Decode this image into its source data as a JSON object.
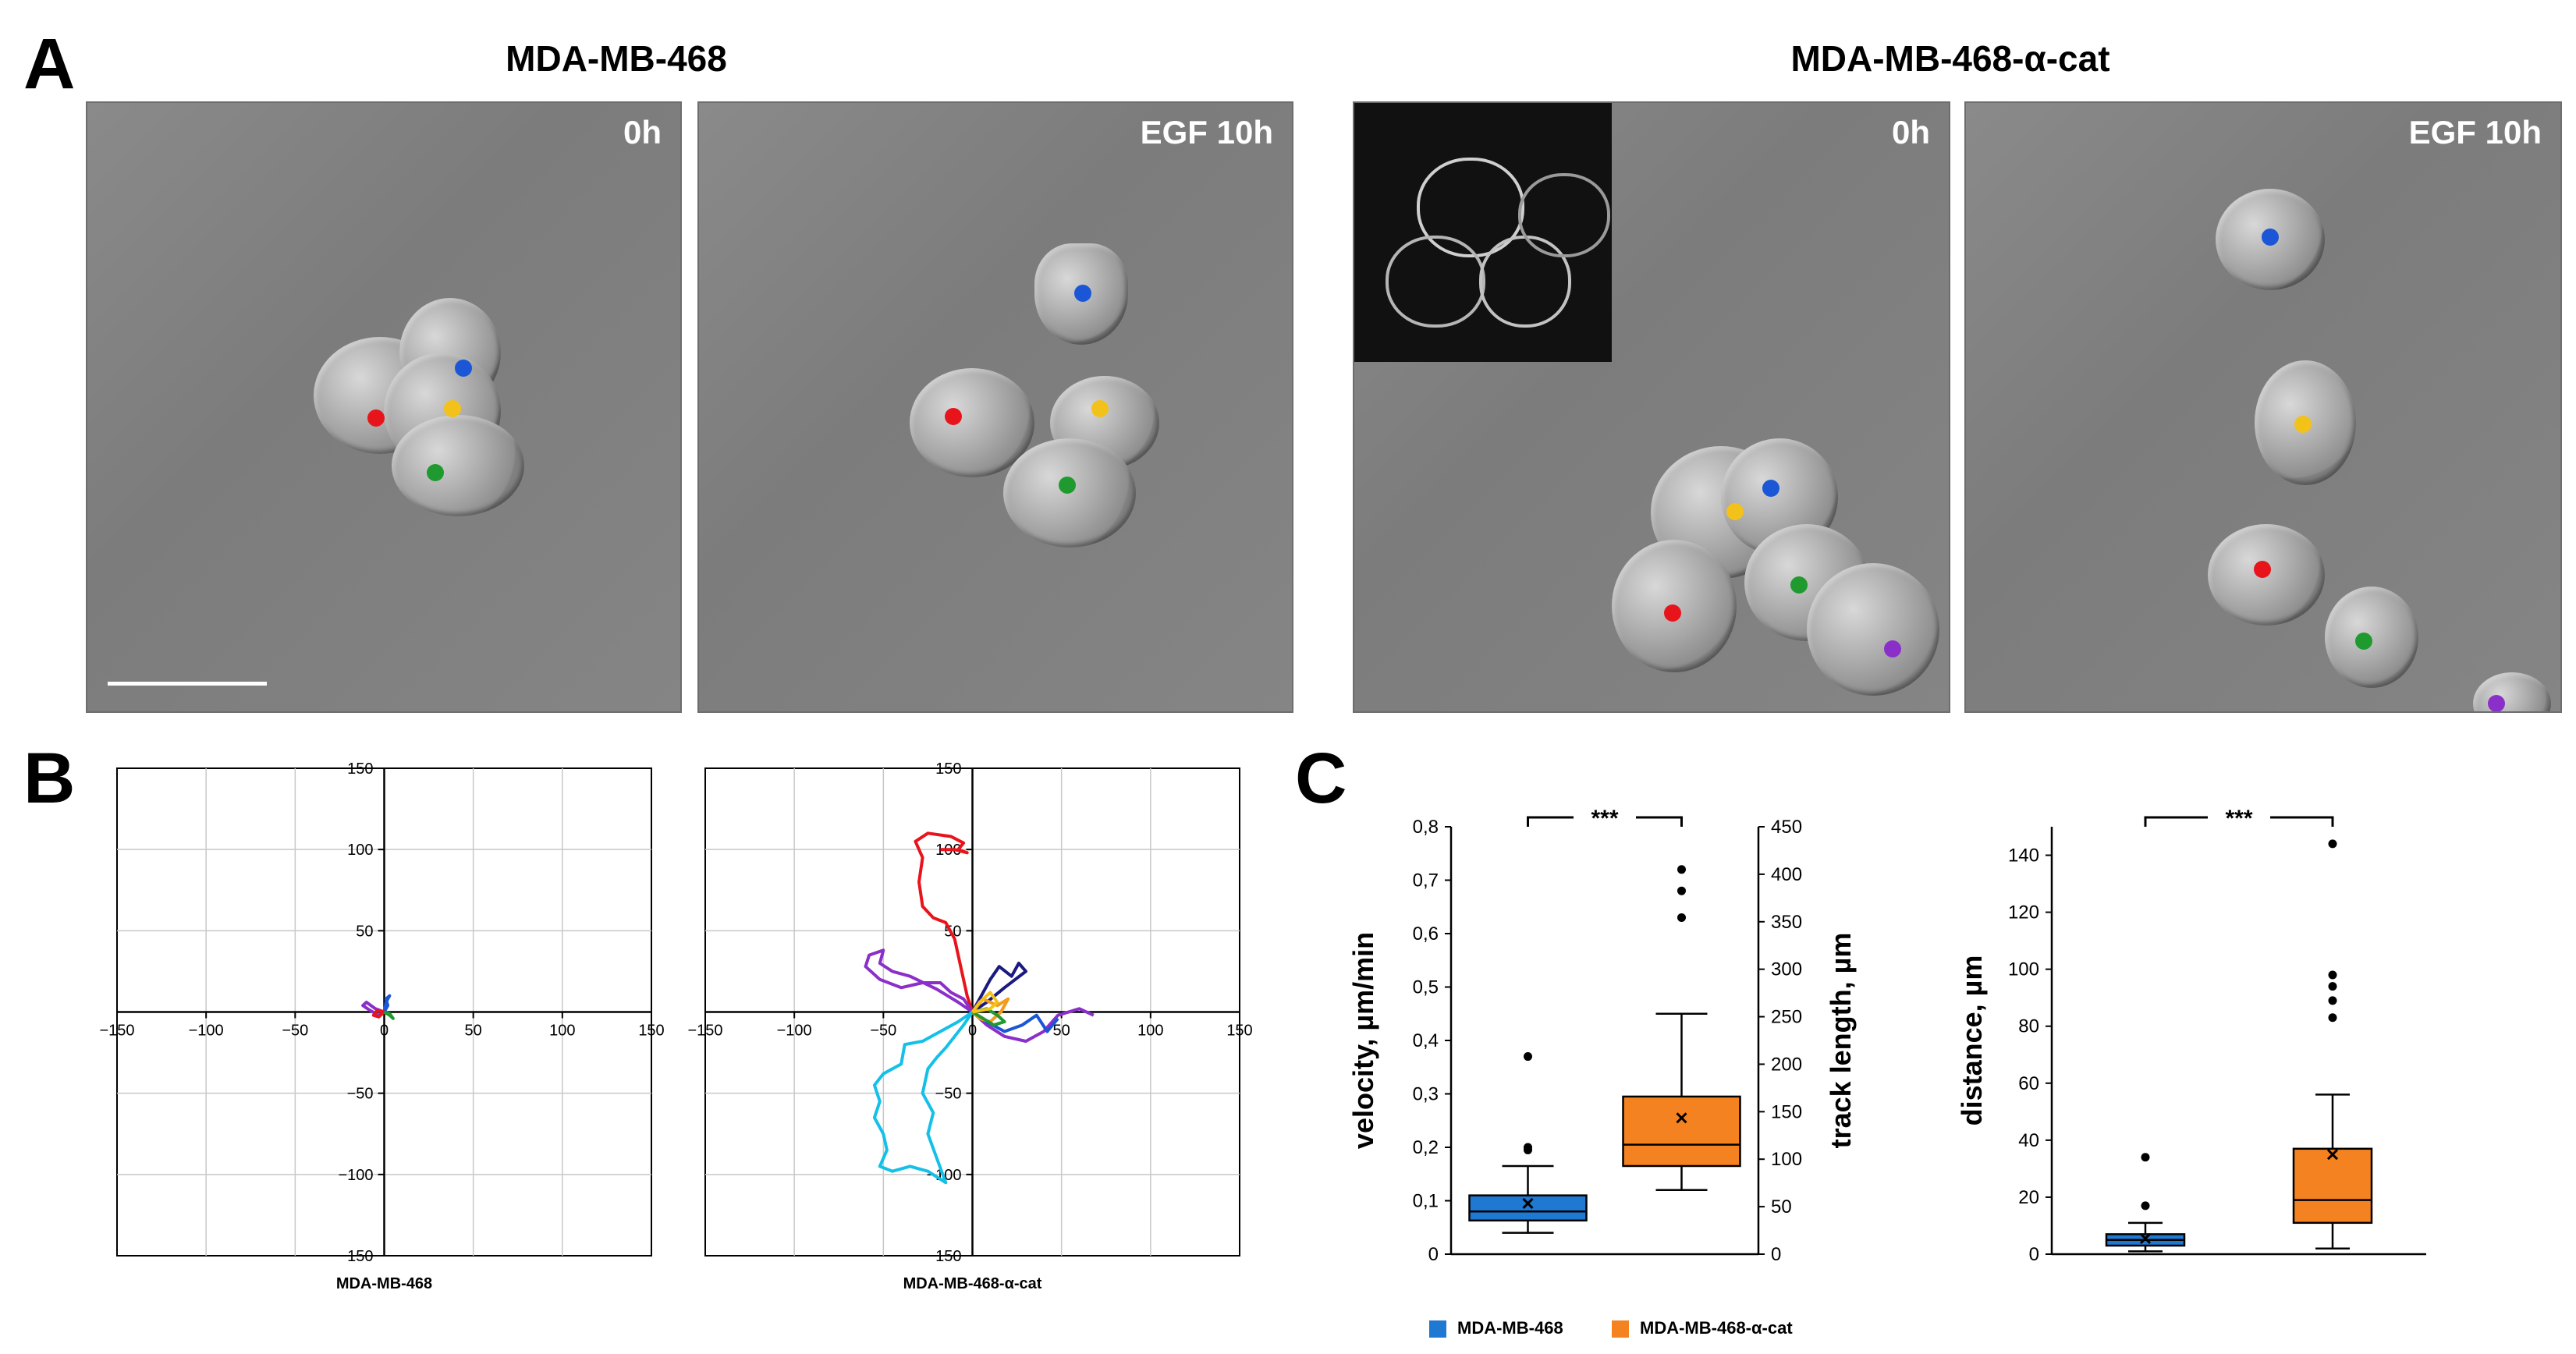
{
  "panel_labels": {
    "a": "A",
    "b": "B",
    "c": "C"
  },
  "panel_a": {
    "group_titles": [
      "MDA-MB-468",
      "MDA-MB-468-α-cat"
    ],
    "images": [
      {
        "label": "0h"
      },
      {
        "label": "EGF 10h"
      },
      {
        "label": "0h"
      },
      {
        "label": "EGF 10h"
      }
    ],
    "track_colors": {
      "red": "#e8141c",
      "blue": "#1a56d6",
      "yellow": "#f2c21b",
      "green": "#1f9a2e",
      "purple": "#8b2fc9"
    }
  },
  "chart_data": [
    {
      "type": "line",
      "panel": "B-left",
      "xlabel": "MDA-MB-468",
      "ylabel": "",
      "xlim": [
        -150,
        150
      ],
      "ylim": [
        -150,
        150
      ],
      "xticks": [
        -150,
        -100,
        -50,
        0,
        50,
        100,
        150
      ],
      "yticks": [
        -150,
        -100,
        -50,
        50,
        100,
        150
      ],
      "xtick_labels": [
        "−150",
        "−100",
        "−50",
        "0",
        "50",
        "100",
        "150"
      ],
      "ytick_labels": [
        "−150",
        "−100",
        "−50",
        "50",
        "100",
        "150"
      ],
      "grid": true,
      "series": [
        {
          "color": "#8b2fc9",
          "points": [
            [
              0,
              0
            ],
            [
              -5,
              2
            ],
            [
              -10,
              6
            ],
            [
              -12,
              4
            ],
            [
              -8,
              1
            ],
            [
              -3,
              -2
            ],
            [
              0,
              0
            ]
          ]
        },
        {
          "color": "#1a56d6",
          "points": [
            [
              0,
              0
            ],
            [
              2,
              4
            ],
            [
              1,
              8
            ],
            [
              3,
              10
            ],
            [
              1,
              6
            ],
            [
              0,
              0
            ]
          ]
        },
        {
          "color": "#e8141c",
          "points": [
            [
              0,
              0
            ],
            [
              -3,
              -3
            ],
            [
              -6,
              -2
            ],
            [
              -4,
              1
            ],
            [
              0,
              0
            ]
          ]
        },
        {
          "color": "#1f9a2e",
          "points": [
            [
              0,
              0
            ],
            [
              3,
              -2
            ],
            [
              5,
              -4
            ],
            [
              3,
              -1
            ],
            [
              0,
              0
            ]
          ]
        }
      ]
    },
    {
      "type": "line",
      "panel": "B-right",
      "xlabel": "MDA-MB-468-α-cat",
      "ylabel": "",
      "xlim": [
        -150,
        150
      ],
      "ylim": [
        -150,
        150
      ],
      "xticks": [
        -150,
        -100,
        -50,
        0,
        50,
        100,
        150
      ],
      "yticks": [
        -150,
        -100,
        -50,
        50,
        100,
        150
      ],
      "xtick_labels": [
        "−150",
        "−100",
        "−50",
        "0",
        "50",
        "100",
        "150"
      ],
      "ytick_labels": [
        "−150",
        "−100",
        "−50",
        "50",
        "100",
        "150"
      ],
      "grid": true,
      "series": [
        {
          "color": "#e8141c",
          "points": [
            [
              0,
              0
            ],
            [
              -3,
              10
            ],
            [
              -6,
              25
            ],
            [
              -10,
              45
            ],
            [
              -15,
              55
            ],
            [
              -22,
              58
            ],
            [
              -28,
              65
            ],
            [
              -30,
              80
            ],
            [
              -28,
              95
            ],
            [
              -32,
              105
            ],
            [
              -25,
              110
            ],
            [
              -12,
              108
            ],
            [
              -5,
              104
            ],
            [
              -8,
              100
            ],
            [
              -3,
              98
            ],
            [
              -10,
              100
            ],
            [
              -18,
              100
            ]
          ]
        },
        {
          "color": "#8b2fc9",
          "points": [
            [
              0,
              0
            ],
            [
              -5,
              8
            ],
            [
              -12,
              12
            ],
            [
              -18,
              18
            ],
            [
              -28,
              18
            ],
            [
              -40,
              15
            ],
            [
              -52,
              20
            ],
            [
              -60,
              28
            ],
            [
              -58,
              35
            ],
            [
              -50,
              38
            ],
            [
              -52,
              30
            ],
            [
              -45,
              25
            ],
            [
              -35,
              22
            ],
            [
              -20,
              14
            ],
            [
              -8,
              6
            ],
            [
              0,
              0
            ],
            [
              8,
              -8
            ],
            [
              18,
              -15
            ],
            [
              30,
              -18
            ],
            [
              40,
              -12
            ],
            [
              48,
              -2
            ],
            [
              60,
              2
            ],
            [
              68,
              -2
            ]
          ]
        },
        {
          "color": "#15c0e8",
          "points": [
            [
              0,
              0
            ],
            [
              -5,
              -8
            ],
            [
              -10,
              -15
            ],
            [
              -15,
              -22
            ],
            [
              -20,
              -28
            ],
            [
              -25,
              -35
            ],
            [
              -28,
              -50
            ],
            [
              -22,
              -62
            ],
            [
              -25,
              -75
            ],
            [
              -20,
              -90
            ],
            [
              -15,
              -105
            ],
            [
              -25,
              -98
            ],
            [
              -35,
              -95
            ],
            [
              -45,
              -98
            ],
            [
              -52,
              -95
            ],
            [
              -48,
              -85
            ],
            [
              -50,
              -75
            ],
            [
              -55,
              -65
            ],
            [
              -52,
              -55
            ],
            [
              -55,
              -45
            ],
            [
              -50,
              -38
            ],
            [
              -40,
              -32
            ],
            [
              -38,
              -20
            ],
            [
              -28,
              -18
            ],
            [
              -18,
              -12
            ],
            [
              -8,
              -6
            ],
            [
              0,
              0
            ]
          ]
        },
        {
          "color": "#1a56d6",
          "points": [
            [
              0,
              0
            ],
            [
              8,
              -6
            ],
            [
              18,
              -12
            ],
            [
              28,
              -8
            ],
            [
              36,
              -2
            ],
            [
              42,
              -12
            ],
            [
              48,
              -4
            ]
          ]
        },
        {
          "color": "#1a1a80",
          "points": [
            [
              0,
              0
            ],
            [
              5,
              10
            ],
            [
              10,
              20
            ],
            [
              15,
              28
            ],
            [
              22,
              22
            ],
            [
              26,
              30
            ],
            [
              30,
              25
            ],
            [
              18,
              15
            ],
            [
              8,
              6
            ],
            [
              0,
              0
            ]
          ]
        },
        {
          "color": "#f59a1d",
          "points": [
            [
              0,
              0
            ],
            [
              6,
              8
            ],
            [
              14,
              4
            ],
            [
              20,
              8
            ],
            [
              16,
              0
            ],
            [
              10,
              -6
            ],
            [
              4,
              -4
            ],
            [
              0,
              0
            ]
          ]
        },
        {
          "color": "#1f9a2e",
          "points": [
            [
              0,
              0
            ],
            [
              6,
              -4
            ],
            [
              12,
              -8
            ],
            [
              18,
              -6
            ],
            [
              14,
              -2
            ],
            [
              8,
              2
            ],
            [
              0,
              0
            ]
          ]
        },
        {
          "color": "#f2c21b",
          "points": [
            [
              0,
              0
            ],
            [
              4,
              6
            ],
            [
              10,
              12
            ],
            [
              14,
              6
            ],
            [
              10,
              2
            ],
            [
              0,
              0
            ]
          ]
        }
      ]
    },
    {
      "type": "box",
      "panel": "C-left",
      "ylabel": "velocity, µm/min",
      "ylabel2": "track length, µm",
      "ylim": [
        0,
        0.8
      ],
      "yticks": [
        0,
        0.1,
        0.2,
        0.3,
        0.4,
        0.5,
        0.6,
        0.7,
        0.8
      ],
      "ytick_labels": [
        "0",
        "0,1",
        "0,2",
        "0,3",
        "0,4",
        "0,5",
        "0,6",
        "0,7",
        "0,8"
      ],
      "y2lim": [
        0,
        450
      ],
      "y2ticks": [
        0,
        50,
        100,
        150,
        200,
        250,
        300,
        350,
        400,
        450
      ],
      "y2tick_labels": [
        "0",
        "50",
        "100",
        "150",
        "200",
        "250",
        "300",
        "350",
        "400",
        "450"
      ],
      "significance": "***",
      "boxes": [
        {
          "name": "MDA-MB-468",
          "color": "#1f78d1",
          "whisker_low": 0.04,
          "q1": 0.063,
          "median": 0.08,
          "q3": 0.11,
          "whisker_high": 0.165,
          "mean": 0.095,
          "outliers": [
            0.195,
            0.2,
            0.37
          ]
        },
        {
          "name": "MDA-MB-468-α-cat",
          "color": "#f58220",
          "whisker_low": 0.12,
          "q1": 0.165,
          "median": 0.205,
          "q3": 0.295,
          "whisker_high": 0.45,
          "mean": 0.255,
          "outliers": [
            0.63,
            0.68,
            0.72
          ]
        }
      ]
    },
    {
      "type": "box",
      "panel": "C-right",
      "ylabel": "distance, µm",
      "ylim": [
        0,
        150
      ],
      "yticks": [
        0,
        20,
        40,
        60,
        80,
        100,
        120,
        140
      ],
      "ytick_labels": [
        "0",
        "20",
        "40",
        "60",
        "80",
        "100",
        "120",
        "140"
      ],
      "significance": "***",
      "boxes": [
        {
          "name": "MDA-MB-468",
          "color": "#1f78d1",
          "whisker_low": 1,
          "q1": 3,
          "median": 5,
          "q3": 7,
          "whisker_high": 11,
          "mean": 5.5,
          "outliers": [
            17,
            34
          ]
        },
        {
          "name": "MDA-MB-468-α-cat",
          "color": "#f58220",
          "whisker_low": 2,
          "q1": 11,
          "median": 19,
          "q3": 37,
          "whisker_high": 56,
          "mean": 35,
          "outliers": [
            83,
            89,
            94,
            98,
            144
          ]
        }
      ]
    }
  ],
  "legend": {
    "items": [
      {
        "label": "MDA-MB-468",
        "color": "#1f78d1"
      },
      {
        "label": "MDA-MB-468-α-cat",
        "color": "#f58220"
      }
    ]
  }
}
